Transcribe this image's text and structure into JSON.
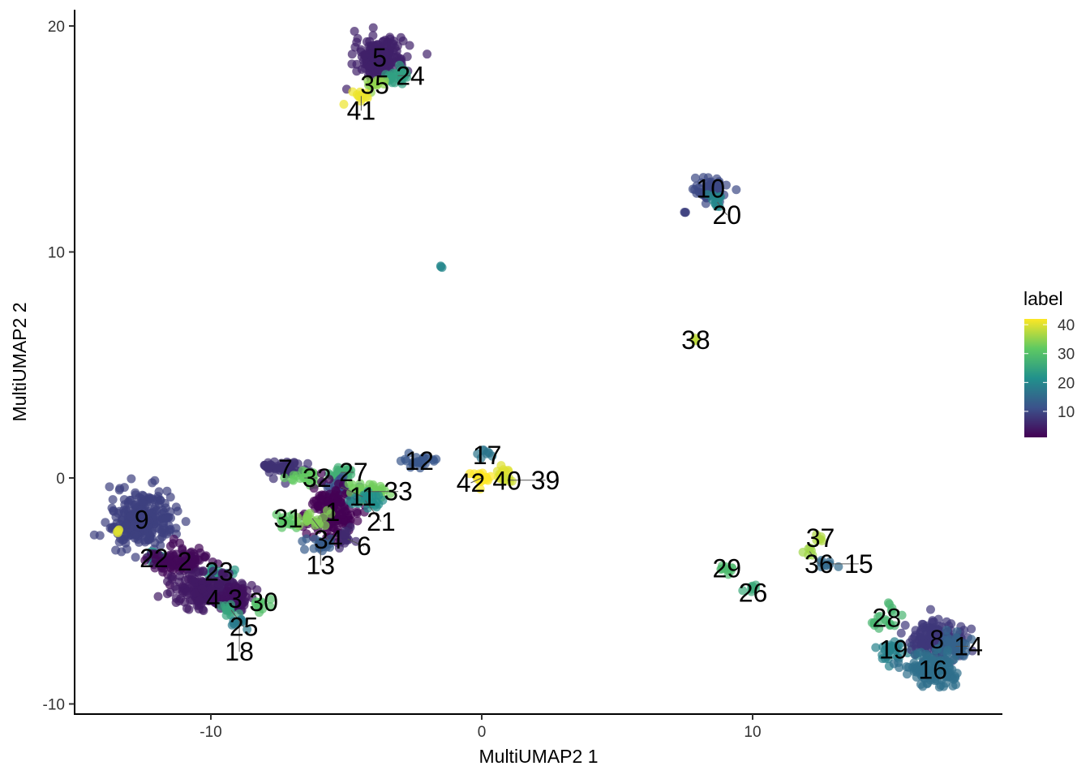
{
  "chart_data": {
    "type": "scatter",
    "title": "",
    "xlabel": "MultiUMAP2 1",
    "ylabel": "MultiUMAP2 2",
    "xlim": [
      -15,
      19.3
    ],
    "ylim": [
      -10.3,
      20.8
    ],
    "xticks": [
      -10,
      0,
      10
    ],
    "yticks": [
      -10,
      0,
      10,
      20
    ],
    "grid": false,
    "legend": {
      "title": "label",
      "placement": "right",
      "range": [
        1,
        42
      ],
      "ticks": [
        10,
        20,
        30,
        40
      ]
    },
    "clusters": [
      {
        "label": "5",
        "value": 5,
        "x": -3.77,
        "y": 18.6,
        "sx": 0.45,
        "sy": 0.4,
        "n": 220
      },
      {
        "label": "24",
        "value": 24,
        "x": -3.1,
        "y": 17.8,
        "sx": 0.25,
        "sy": 0.15,
        "n": 25
      },
      {
        "label": "35",
        "value": 35,
        "x": -3.95,
        "y": 17.4,
        "sx": 0.2,
        "sy": 0.15,
        "n": 15
      },
      {
        "label": "41",
        "value": 41,
        "x": -4.45,
        "y": 16.9,
        "sx": 0.15,
        "sy": 0.15,
        "n": 12
      },
      {
        "label": "10",
        "value": 10,
        "x": 8.45,
        "y": 12.8,
        "sx": 0.3,
        "sy": 0.25,
        "n": 60
      },
      {
        "label": "20",
        "value": 20,
        "x": 8.7,
        "y": 12.2,
        "sx": 0.2,
        "sy": 0.15,
        "n": 15
      },
      {
        "label": "",
        "value": 9,
        "x": 7.5,
        "y": 11.75,
        "sx": 0.02,
        "sy": 0.02,
        "n": 3
      },
      {
        "label": "",
        "value": 20,
        "x": -1.5,
        "y": 9.35,
        "sx": 0.02,
        "sy": 0.02,
        "n": 3
      },
      {
        "label": "38",
        "value": 38,
        "x": 7.9,
        "y": 6.1,
        "sx": 0.05,
        "sy": 0.05,
        "n": 4
      },
      {
        "label": "17",
        "value": 17,
        "x": 0.2,
        "y": 1.0,
        "sx": 0.15,
        "sy": 0.15,
        "n": 8
      },
      {
        "label": "40",
        "value": 40,
        "x": 0.7,
        "y": 0.25,
        "sx": 0.2,
        "sy": 0.15,
        "n": 12
      },
      {
        "label": "42",
        "value": 42,
        "x": 0.0,
        "y": 0.0,
        "sx": 0.25,
        "sy": 0.12,
        "n": 20
      },
      {
        "label": "39",
        "value": 39,
        "x": 0.95,
        "y": -0.1,
        "sx": 0.15,
        "sy": 0.1,
        "n": 8
      },
      {
        "label": "12",
        "value": 12,
        "x": -2.3,
        "y": 0.75,
        "sx": 0.3,
        "sy": 0.15,
        "n": 25
      },
      {
        "label": "7",
        "value": 7,
        "x": -7.25,
        "y": 0.4,
        "sx": 0.45,
        "sy": 0.2,
        "n": 60
      },
      {
        "label": "32",
        "value": 32,
        "x": -6.55,
        "y": 0.0,
        "sx": 0.3,
        "sy": 0.2,
        "n": 25
      },
      {
        "label": "27",
        "value": 27,
        "x": -5.2,
        "y": 0.25,
        "sx": 0.3,
        "sy": 0.2,
        "n": 25
      },
      {
        "label": "11",
        "value": 11,
        "x": -5.2,
        "y": -0.4,
        "sx": 0.3,
        "sy": 0.3,
        "n": 30
      },
      {
        "label": "1",
        "value": 1,
        "x": -5.5,
        "y": -1.5,
        "sx": 0.45,
        "sy": 0.6,
        "n": 150
      },
      {
        "label": "33",
        "value": 33,
        "x": -4.25,
        "y": -0.6,
        "sx": 0.35,
        "sy": 0.2,
        "n": 30
      },
      {
        "label": "21",
        "value": 21,
        "x": -4.3,
        "y": -1.0,
        "sx": 0.3,
        "sy": 0.2,
        "n": 25
      },
      {
        "label": "31",
        "value": 31,
        "x": -7.15,
        "y": -1.8,
        "sx": 0.2,
        "sy": 0.15,
        "n": 15
      },
      {
        "label": "34",
        "value": 34,
        "x": -6.25,
        "y": -1.8,
        "sx": 0.3,
        "sy": 0.2,
        "n": 20
      },
      {
        "label": "13",
        "value": 13,
        "x": -5.95,
        "y": -3.0,
        "sx": 0.3,
        "sy": 0.2,
        "n": 20
      },
      {
        "label": "6",
        "value": 6,
        "x": -4.95,
        "y": -2.7,
        "sx": 0.2,
        "sy": 0.2,
        "n": 15
      },
      {
        "label": "9",
        "value": 9,
        "x": -12.55,
        "y": -1.85,
        "sx": 0.6,
        "sy": 0.6,
        "n": 250
      },
      {
        "label": "",
        "value": 40,
        "x": -13.45,
        "y": -2.35,
        "sx": 0.05,
        "sy": 0.05,
        "n": 4
      },
      {
        "label": "22",
        "value": 22,
        "x": -12.1,
        "y": -3.55,
        "sx": 0.2,
        "sy": 0.15,
        "n": 15
      },
      {
        "label": "2",
        "value": 2,
        "x": -11.2,
        "y": -3.7,
        "sx": 0.5,
        "sy": 0.35,
        "n": 100
      },
      {
        "label": "23",
        "value": 23,
        "x": -9.7,
        "y": -4.15,
        "sx": 0.25,
        "sy": 0.15,
        "n": 15
      },
      {
        "label": "4",
        "value": 4,
        "x": -10.15,
        "y": -5.0,
        "sx": 0.7,
        "sy": 0.4,
        "n": 200
      },
      {
        "label": "3",
        "value": 3,
        "x": -9.1,
        "y": -5.35,
        "sx": 0.4,
        "sy": 0.25,
        "n": 60
      },
      {
        "label": "30",
        "value": 30,
        "x": -8.05,
        "y": -5.5,
        "sx": 0.2,
        "sy": 0.15,
        "n": 12
      },
      {
        "label": "25",
        "value": 25,
        "x": -9.25,
        "y": -5.85,
        "sx": 0.2,
        "sy": 0.15,
        "n": 12
      },
      {
        "label": "18",
        "value": 18,
        "x": -8.95,
        "y": -6.4,
        "sx": 0.2,
        "sy": 0.15,
        "n": 12
      },
      {
        "label": "29",
        "value": 29,
        "x": 9.05,
        "y": -4.0,
        "sx": 0.15,
        "sy": 0.12,
        "n": 10
      },
      {
        "label": "26",
        "value": 26,
        "x": 9.9,
        "y": -4.9,
        "sx": 0.12,
        "sy": 0.1,
        "n": 8
      },
      {
        "label": "37",
        "value": 37,
        "x": 12.5,
        "y": -2.65,
        "sx": 0.1,
        "sy": 0.1,
        "n": 6
      },
      {
        "label": "36",
        "value": 36,
        "x": 12.1,
        "y": -3.25,
        "sx": 0.1,
        "sy": 0.1,
        "n": 6
      },
      {
        "label": "15",
        "value": 15,
        "x": 12.75,
        "y": -3.8,
        "sx": 0.15,
        "sy": 0.1,
        "n": 8
      },
      {
        "label": "28",
        "value": 28,
        "x": 14.95,
        "y": -6.2,
        "sx": 0.3,
        "sy": 0.25,
        "n": 20
      },
      {
        "label": "19",
        "value": 19,
        "x": 15.2,
        "y": -7.6,
        "sx": 0.3,
        "sy": 0.25,
        "n": 30
      },
      {
        "label": "8",
        "value": 8,
        "x": 16.8,
        "y": -7.15,
        "sx": 0.5,
        "sy": 0.4,
        "n": 150
      },
      {
        "label": "14",
        "value": 14,
        "x": 17.5,
        "y": -7.45,
        "sx": 0.25,
        "sy": 0.3,
        "n": 40
      },
      {
        "label": "16",
        "value": 16,
        "x": 16.65,
        "y": -8.5,
        "sx": 0.45,
        "sy": 0.35,
        "n": 120
      }
    ]
  }
}
